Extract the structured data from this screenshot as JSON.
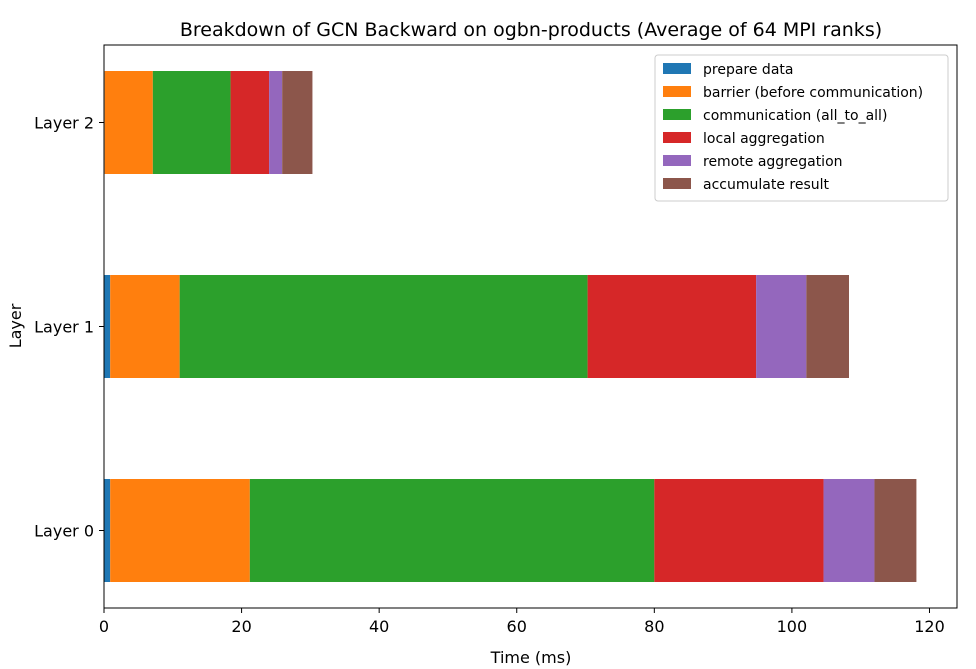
{
  "chart_data": {
    "type": "bar",
    "orientation": "horizontal",
    "stacked": true,
    "title": "Breakdown of GCN Backward on ogbn-products (Average of 64 MPI ranks)",
    "xlabel": "Time (ms)",
    "ylabel": "Layer",
    "xlim": [
      0,
      124
    ],
    "x_ticks": [
      0,
      20,
      40,
      60,
      80,
      100,
      120
    ],
    "categories": [
      "Layer 0",
      "Layer 1",
      "Layer 2"
    ],
    "grid": false,
    "legend_position": "top-right",
    "series": [
      {
        "name": "prepare data",
        "color": "#1f77b4",
        "values": [
          0.9,
          0.9,
          0.1
        ]
      },
      {
        "name": "barrier (before communication)",
        "color": "#ff7f0e",
        "values": [
          20.3,
          10.1,
          7.0
        ]
      },
      {
        "name": "communication (all_to_all)",
        "color": "#2ca02c",
        "values": [
          58.8,
          59.3,
          11.3
        ]
      },
      {
        "name": "local aggregation",
        "color": "#d62728",
        "values": [
          24.6,
          24.5,
          5.6
        ]
      },
      {
        "name": "remote aggregation",
        "color": "#9467bd",
        "values": [
          7.4,
          7.3,
          1.9
        ]
      },
      {
        "name": "accumulate result",
        "color": "#8c564b",
        "values": [
          6.1,
          6.2,
          4.4
        ]
      }
    ]
  }
}
